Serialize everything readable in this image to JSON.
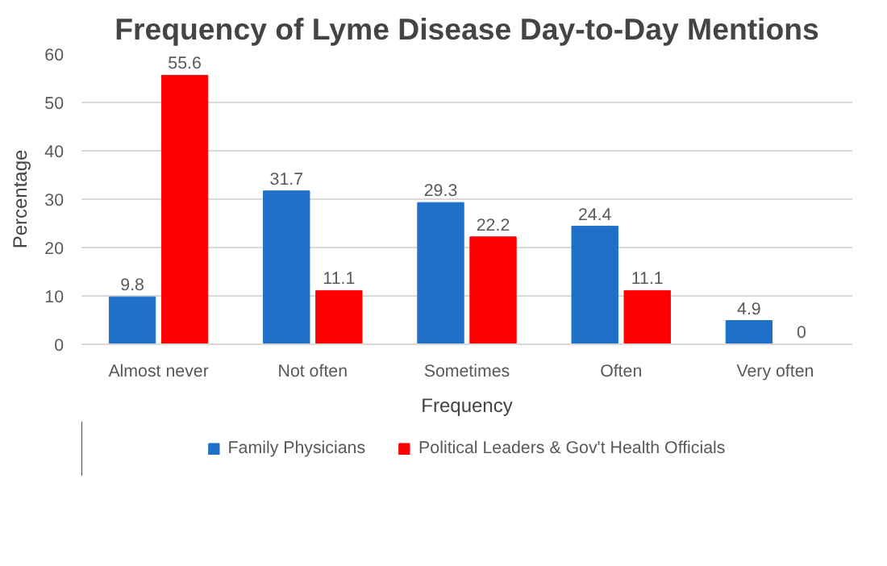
{
  "chart_data": {
    "type": "bar",
    "title": "Frequency of Lyme Disease Day-to-Day Mentions",
    "xlabel": "Frequency",
    "ylabel": "Percentage",
    "categories": [
      "Almost never",
      "Not often",
      "Sometimes",
      "Often",
      "Very often"
    ],
    "series": [
      {
        "name": "Family Physicians",
        "color": "#1f70c9",
        "values": [
          9.8,
          31.7,
          29.3,
          24.4,
          4.9
        ]
      },
      {
        "name": "Political Leaders & Gov't Health Officials",
        "color": "#ff0000",
        "values": [
          55.6,
          11.1,
          22.2,
          11.1,
          0
        ]
      }
    ],
    "ylim": [
      0,
      60
    ],
    "yticks": [
      0,
      10,
      20,
      30,
      40,
      50,
      60
    ],
    "grid": "y",
    "legend": "bottom",
    "data_labels": true
  }
}
